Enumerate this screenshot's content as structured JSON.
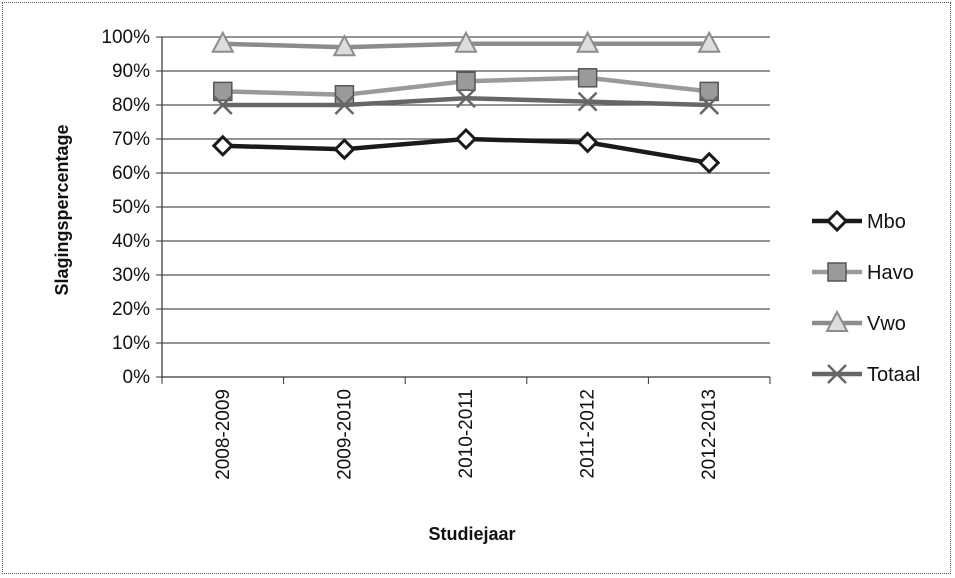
{
  "chart_data": {
    "type": "line",
    "xlabel": "Studiejaar",
    "ylabel": "Slagingspercentage",
    "categories": [
      "2008-2009",
      "2009-2010",
      "2010-2011",
      "2011-2012",
      "2012-2013"
    ],
    "y_ticks": [
      "0%",
      "10%",
      "20%",
      "30%",
      "40%",
      "50%",
      "60%",
      "70%",
      "80%",
      "90%",
      "100%"
    ],
    "ylim": [
      0,
      100
    ],
    "grid": true,
    "legend_position": "right",
    "series": [
      {
        "name": "Mbo",
        "values": [
          68,
          67,
          70,
          69,
          63
        ],
        "marker": "diamond",
        "color": "#1a1a1a"
      },
      {
        "name": "Havo",
        "values": [
          84,
          83,
          87,
          88,
          84
        ],
        "marker": "square",
        "color": "#9a9a9a"
      },
      {
        "name": "Vwo",
        "values": [
          98,
          97,
          98,
          98,
          98
        ],
        "marker": "triangle",
        "color": "#8c8c8c"
      },
      {
        "name": "Totaal",
        "values": [
          80,
          80,
          82,
          81,
          80
        ],
        "marker": "x",
        "color": "#666666"
      }
    ]
  }
}
